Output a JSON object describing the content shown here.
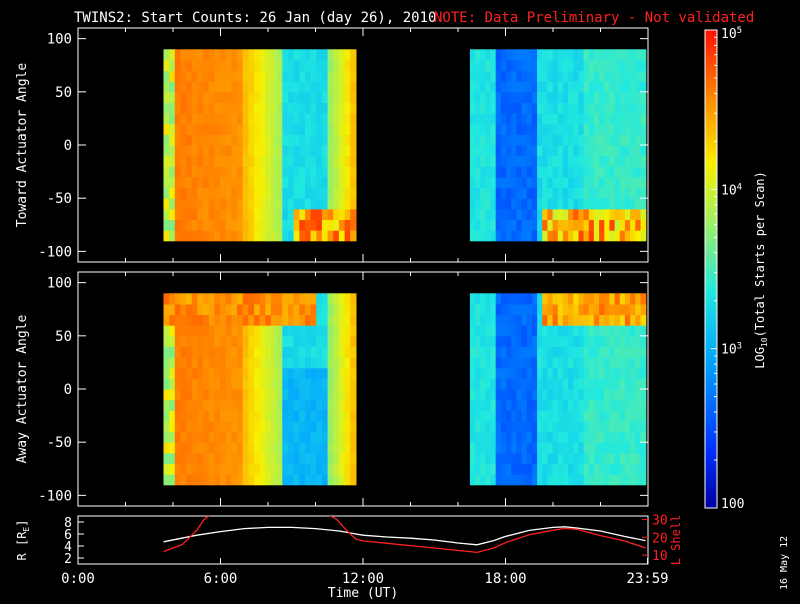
{
  "header": {
    "title": "TWINS2: Start Counts: 26 Jan (day  26), 2010",
    "note": "NOTE: Data Preliminary - Not validated",
    "note_color": "#ff2020"
  },
  "side_date": "16 May 12",
  "colors": {
    "background": "#000000",
    "axes": "#ffffff",
    "r_line": "#ffffff",
    "lshell_line": "#ff2020"
  },
  "chart_data": [
    {
      "type": "heatmap",
      "name": "toward",
      "ylabel": "Toward Actuator Angle",
      "x_range_hours": [
        0,
        24
      ],
      "ylim": [
        -110,
        110
      ],
      "yticks": [
        100,
        50,
        0,
        -50,
        -100
      ],
      "data_x_ranges_hours": [
        [
          3.6,
          11.7
        ],
        [
          16.5,
          23.9
        ]
      ],
      "data_y_range": [
        -90,
        90
      ],
      "colormap": "rainbow-log",
      "description_levels": "log10 start counts, scale 100 to 1e5"
    },
    {
      "type": "heatmap",
      "name": "away",
      "ylabel": "Away Actuator Angle",
      "x_range_hours": [
        0,
        24
      ],
      "ylim": [
        -110,
        110
      ],
      "yticks": [
        100,
        50,
        0,
        -50,
        -100
      ],
      "data_x_ranges_hours": [
        [
          3.6,
          11.7
        ],
        [
          16.5,
          23.9
        ]
      ],
      "data_y_range": [
        -90,
        90
      ],
      "colormap": "rainbow-log"
    },
    {
      "type": "line",
      "name": "orbit",
      "x_range_hours": [
        0,
        24
      ],
      "xticks": [
        "0:00",
        "6:00",
        "12:00",
        "18:00",
        "23:59"
      ],
      "xtick_hours": [
        0,
        6,
        12,
        18,
        23.98
      ],
      "xlabel": "Time (UT)",
      "ylabel_left": "R [R",
      "ylabel_left_sub": "E",
      "ylabel_left_end": "]",
      "ylim_left": [
        1,
        9
      ],
      "yticks_left": [
        "8",
        "6",
        "4",
        "2"
      ],
      "ylabel_right": "L Shell",
      "ylim_right": [
        5,
        32
      ],
      "yticks_right": [
        "30",
        "20",
        "10"
      ],
      "series": [
        {
          "name": "R",
          "axis": "left",
          "x": [
            3.6,
            5,
            6,
            7,
            8,
            9,
            10,
            11,
            11.7,
            12,
            13,
            14,
            15,
            16,
            16.8,
            17.5,
            18,
            19,
            20,
            20.5,
            21,
            22,
            23,
            23.9
          ],
          "y": [
            4.7,
            5.8,
            6.4,
            6.9,
            7.1,
            7.1,
            6.9,
            6.5,
            6.0,
            5.8,
            5.5,
            5.3,
            5.0,
            4.5,
            4.2,
            4.9,
            5.6,
            6.6,
            7.1,
            7.2,
            7.0,
            6.5,
            5.6,
            4.9
          ]
        },
        {
          "name": "L Shell",
          "axis": "right",
          "x": [
            3.6,
            4.4,
            5.0,
            5.3,
            5.6,
            10.5,
            10.9,
            11.3,
            11.7,
            12,
            16.5,
            16.8,
            17.5,
            18,
            19,
            20,
            20.5,
            21,
            22,
            23,
            23.9
          ],
          "y": [
            12,
            16,
            24,
            30,
            33,
            33,
            30,
            24,
            19,
            18,
            12,
            11.5,
            14,
            17,
            21.5,
            24,
            25,
            24.5,
            21,
            18,
            14
          ]
        }
      ]
    },
    {
      "type": "heatmap",
      "name": "colorbar",
      "ylabel": "LOG10(Total Starts per Scan)",
      "scale": "log",
      "range": [
        100,
        100000
      ],
      "ticks": [
        {
          "label": "10",
          "sup": "5",
          "value": 100000
        },
        {
          "label": "10",
          "sup": "4",
          "value": 10000
        },
        {
          "label": "10",
          "sup": "3",
          "value": 1000
        },
        {
          "label": "100",
          "sup": "",
          "value": 100
        }
      ]
    }
  ]
}
